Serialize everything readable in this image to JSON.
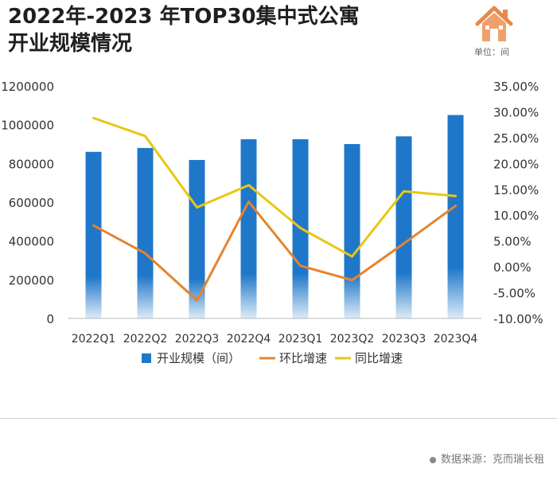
{
  "header": {
    "title_line1": "2022年-2023 年TOP30集中式公寓",
    "title_line2": "开业规模情况",
    "unit": "单位：间",
    "logo_icon": "house-icon"
  },
  "footer": {
    "source": "数据来源：克而瑞长租"
  },
  "colors": {
    "bar": "#1f77c9",
    "qoq": "#e6832e",
    "yoy": "#e8c714",
    "axis": "#333333"
  },
  "chart_data": {
    "type": "bar",
    "categories": [
      "2022Q1",
      "2022Q2",
      "2022Q3",
      "2022Q4",
      "2023Q1",
      "2023Q2",
      "2023Q3",
      "2023Q4"
    ],
    "series": [
      {
        "name": "开业规模（间）",
        "type": "bar",
        "axis": "left",
        "values": [
          860000,
          880000,
          818000,
          925000,
          925000,
          900000,
          940000,
          1050000
        ]
      },
      {
        "name": "环比增速",
        "type": "line",
        "axis": "right",
        "values": [
          8.0,
          2.6,
          -6.5,
          12.6,
          0.2,
          -2.6,
          4.5,
          11.8
        ]
      },
      {
        "name": "同比增速",
        "type": "line",
        "axis": "right",
        "values": [
          28.8,
          25.3,
          11.5,
          15.8,
          7.5,
          2.0,
          14.6,
          13.7
        ]
      }
    ],
    "ylim_left": [
      0,
      1200000
    ],
    "yticks_left": [
      "0",
      "200000",
      "400000",
      "600000",
      "800000",
      "1000000",
      "1200000"
    ],
    "ylim_right": [
      -10,
      35
    ],
    "yticks_right": [
      "-10.00%",
      "-5.00%",
      "0.00%",
      "5.00%",
      "10.00%",
      "15.00%",
      "20.00%",
      "25.00%",
      "30.00%",
      "35.00%"
    ],
    "legend_position": "bottom"
  }
}
